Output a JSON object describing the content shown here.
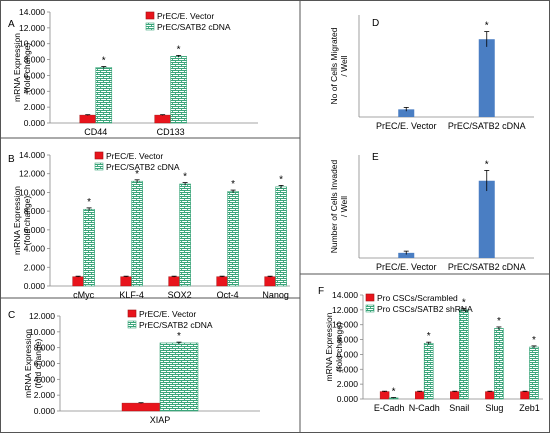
{
  "colors": {
    "control": "#e8141c",
    "treated_fill": "#ffffff",
    "treated_pattern": "#3aa57a",
    "blue_bar": "#4a7ec3",
    "error": "#000000"
  },
  "chart_data": [
    {
      "panel": "A",
      "type": "bar",
      "categories": [
        "CD44",
        "CD133"
      ],
      "series": [
        {
          "name": "PrEC/E. Vector",
          "values": [
            1.0,
            1.0
          ],
          "errors": [
            0.05,
            0.05
          ]
        },
        {
          "name": "PrEC/SATB2 cDNA",
          "values": [
            7.0,
            8.4
          ],
          "errors": [
            0.12,
            0.12
          ]
        }
      ],
      "significance": [
        "*",
        "*"
      ],
      "ylabel": "mRNA Expression (fold change)",
      "ylim": [
        0,
        14
      ],
      "yticks": [
        "0.000",
        "2.000",
        "4.000",
        "6.000",
        "8.000",
        "10.000",
        "12.000",
        "14.000"
      ],
      "legend_position": "top-center"
    },
    {
      "panel": "B",
      "type": "bar",
      "categories": [
        "cMyc",
        "KLF-4",
        "SOX2",
        "Oct-4",
        "Nanog"
      ],
      "series": [
        {
          "name": "PrEC/E. Vector",
          "values": [
            1.0,
            1.0,
            1.0,
            1.0,
            1.0
          ],
          "errors": [
            0.05,
            0.05,
            0.05,
            0.05,
            0.05
          ]
        },
        {
          "name": "PrEC/SATB2 cDNA",
          "values": [
            8.2,
            11.2,
            10.9,
            10.1,
            10.6
          ],
          "errors": [
            0.15,
            0.15,
            0.15,
            0.15,
            0.15
          ]
        }
      ],
      "significance": [
        "*",
        "*",
        "*",
        "*",
        "*"
      ],
      "ylabel": "mRNA Expression (fold change)",
      "ylim": [
        0,
        14
      ],
      "yticks": [
        "0.000",
        "2.000",
        "4.000",
        "6.000",
        "8.000",
        "10.000",
        "12.000",
        "14.000"
      ],
      "legend_position": "top-left"
    },
    {
      "panel": "C",
      "type": "bar",
      "categories": [
        "XIAP"
      ],
      "series": [
        {
          "name": "PrEC/E. Vector",
          "values": [
            1.0
          ],
          "errors": [
            0.05
          ]
        },
        {
          "name": "PrEC/SATB2 cDNA",
          "values": [
            8.6
          ],
          "errors": [
            0.1
          ]
        }
      ],
      "significance": [
        "*"
      ],
      "ylabel": "mRNA Expression (fold change)",
      "ylim": [
        0,
        12
      ],
      "yticks": [
        "0.000",
        "2.000",
        "4.000",
        "6.000",
        "8.000",
        "10.000",
        "12.000"
      ],
      "legend_position": "top-center"
    },
    {
      "panel": "D",
      "type": "bar",
      "categories": [
        "PrEC/E. Vector",
        "PrEC/SATB2 cDNA"
      ],
      "values": [
        6,
        61
      ],
      "errors": [
        1.5,
        6
      ],
      "significance": [
        "",
        "*"
      ],
      "ylabel": "No of Cells Migrated / Well",
      "ylim": [
        0,
        80
      ]
    },
    {
      "panel": "E",
      "type": "bar",
      "categories": [
        "PrEC/E. Vector",
        "PrEC/SATB2 cDNA"
      ],
      "values": [
        3,
        45
      ],
      "errors": [
        1,
        6
      ],
      "significance": [
        "",
        "*"
      ],
      "ylabel": "Number of Cells Invaded / Well",
      "ylim": [
        0,
        60
      ]
    },
    {
      "panel": "F",
      "type": "bar",
      "categories": [
        "E-Cadh",
        "N-Cadh",
        "Snail",
        "Slug",
        "Zeb1"
      ],
      "series": [
        {
          "name": "Pro CSCs/Scrambled",
          "values": [
            1.0,
            1.0,
            1.0,
            1.0,
            1.0
          ],
          "errors": [
            0.05,
            0.05,
            0.05,
            0.05,
            0.05
          ]
        },
        {
          "name": "Pro CSCs/SATB2 shRNA",
          "values": [
            0.15,
            7.5,
            12.0,
            9.5,
            7.0
          ],
          "errors": [
            0.05,
            0.15,
            0.2,
            0.2,
            0.15
          ]
        }
      ],
      "significance": [
        "*",
        "*",
        "*",
        "*",
        "*"
      ],
      "ylabel": "mRNA Expression (fold change)",
      "ylim": [
        0,
        14
      ],
      "yticks": [
        "0.000",
        "2.000",
        "4.000",
        "6.000",
        "8.000",
        "10.000",
        "12.000",
        "14.000"
      ],
      "legend_position": "top-left"
    }
  ]
}
